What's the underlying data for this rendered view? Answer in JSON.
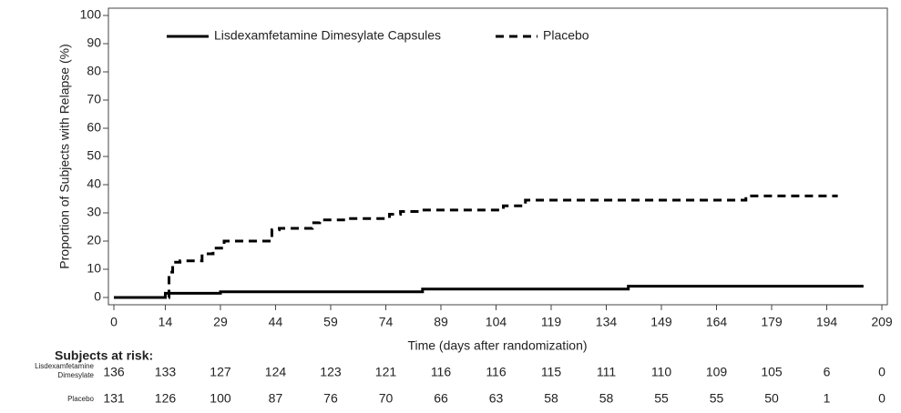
{
  "chart_data": {
    "type": "step",
    "x_label": "Time (days after randomization)",
    "y_label": "Proportion of Subjects with Relapse (%)",
    "xlim": [
      0,
      209
    ],
    "xticks": [
      0,
      14,
      29,
      44,
      59,
      74,
      89,
      104,
      119,
      134,
      149,
      164,
      179,
      194,
      209
    ],
    "ylim": [
      0,
      100
    ],
    "yticks": [
      0,
      10,
      20,
      30,
      40,
      50,
      60,
      70,
      80,
      90,
      100
    ],
    "series": [
      {
        "name": "Lisdexamfetamine Dimesylate Capsules",
        "color": "#000000",
        "dash": "solid",
        "x": [
          0,
          14,
          29,
          84,
          140,
          204
        ],
        "values": [
          0,
          1.5,
          2,
          3,
          4,
          4
        ]
      },
      {
        "name": "Placebo",
        "color": "#000000",
        "dash": "dashed",
        "x": [
          0,
          15,
          16,
          18,
          24,
          27,
          30,
          43,
          45,
          54,
          56,
          63,
          75,
          78,
          84,
          106,
          112,
          172,
          197
        ],
        "values": [
          0,
          9,
          12.5,
          13,
          15.5,
          17.5,
          20,
          24,
          24.5,
          26.5,
          27.5,
          28,
          29.5,
          30.5,
          31,
          32.5,
          34.5,
          36,
          36
        ]
      }
    ],
    "risk_table": {
      "title": "Subjects at risk:",
      "rows": [
        {
          "label_lines": [
            "Lisdexamfetamine",
            "Dimesylate"
          ],
          "values": [
            "136",
            "133",
            "127",
            "124",
            "123",
            "121",
            "116",
            "116",
            "115",
            "111",
            "110",
            "109",
            "105",
            "6",
            "0"
          ]
        },
        {
          "label_lines": [
            "Placebo"
          ],
          "values": [
            "131",
            "126",
            "100",
            "87",
            "76",
            "70",
            "66",
            "63",
            "58",
            "58",
            "55",
            "55",
            "50",
            "1",
            "0"
          ]
        }
      ]
    }
  }
}
